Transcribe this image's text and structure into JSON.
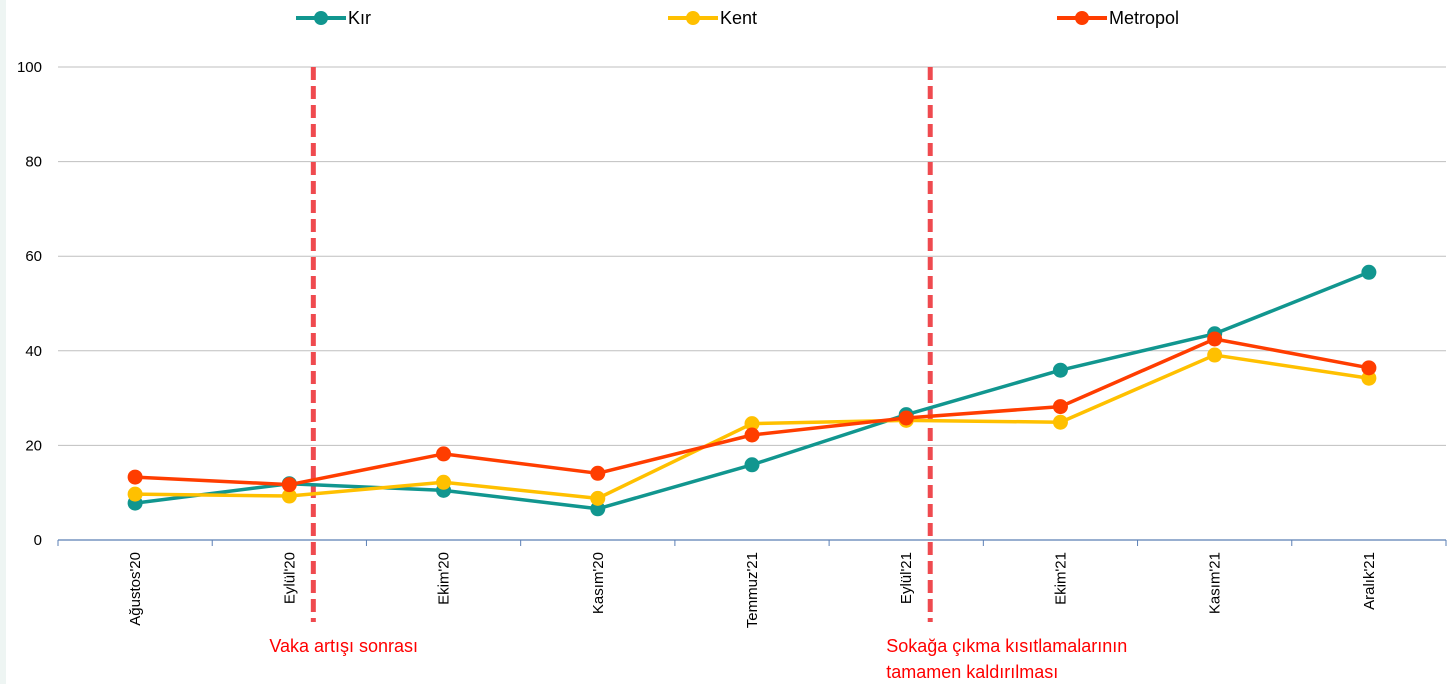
{
  "chart_data": {
    "type": "line",
    "categories": [
      "Ağustos'20",
      "Eylül'20",
      "Ekim'20",
      "Kasım'20",
      "Temmuz'21",
      "Eylül'21",
      "Ekim'21",
      "Kasım'21",
      "Aralık'21"
    ],
    "series": [
      {
        "name": "Kır",
        "color": "#11968f",
        "values": [
          7.8,
          11.9,
          10.5,
          6.6,
          15.9,
          26.5,
          35.9,
          43.6,
          56.6
        ]
      },
      {
        "name": "Kent",
        "color": "#ffc000",
        "values": [
          9.7,
          9.3,
          12.2,
          8.8,
          24.6,
          25.3,
          24.9,
          39.1,
          34.2
        ]
      },
      {
        "name": "Metropol",
        "color": "#ff3d00",
        "values": [
          13.3,
          11.7,
          18.2,
          14.1,
          22.2,
          25.8,
          28.2,
          42.5,
          36.4
        ]
      }
    ],
    "ylim": [
      0,
      100
    ],
    "yticks": [
      0,
      20,
      40,
      60,
      80,
      100
    ],
    "grid": true,
    "legend_position": "top",
    "annotations": [
      {
        "after_category": "Eylül'20",
        "text": "Vaka artışı sonrası",
        "color": "#ef4a4f"
      },
      {
        "after_category": "Eylül'21",
        "text": "Sokağa çıkma kısıtlamalarının tamamen kaldırılması",
        "color": "#ef4a4f"
      }
    ]
  }
}
